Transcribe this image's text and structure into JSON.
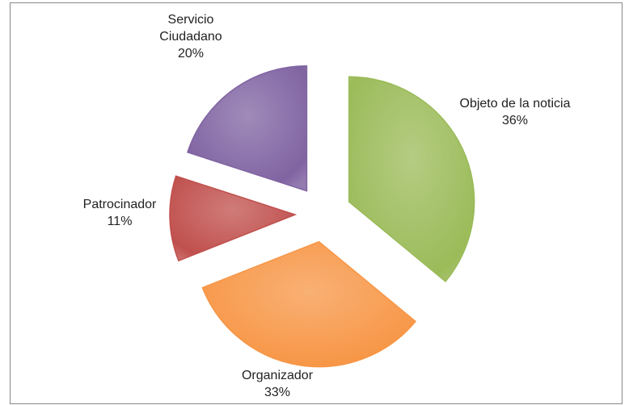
{
  "chart_data": {
    "type": "pie",
    "categories": [
      "Objeto de la noticia",
      "Organizador",
      "Patrocinador",
      "Servicio Ciudadano"
    ],
    "values": [
      36,
      33,
      11,
      20
    ],
    "value_labels": [
      "36%",
      "33%",
      "11%",
      "20%"
    ],
    "colors": [
      "#9bbb59",
      "#f79646",
      "#c0504d",
      "#8064a2"
    ],
    "exploded": true
  }
}
